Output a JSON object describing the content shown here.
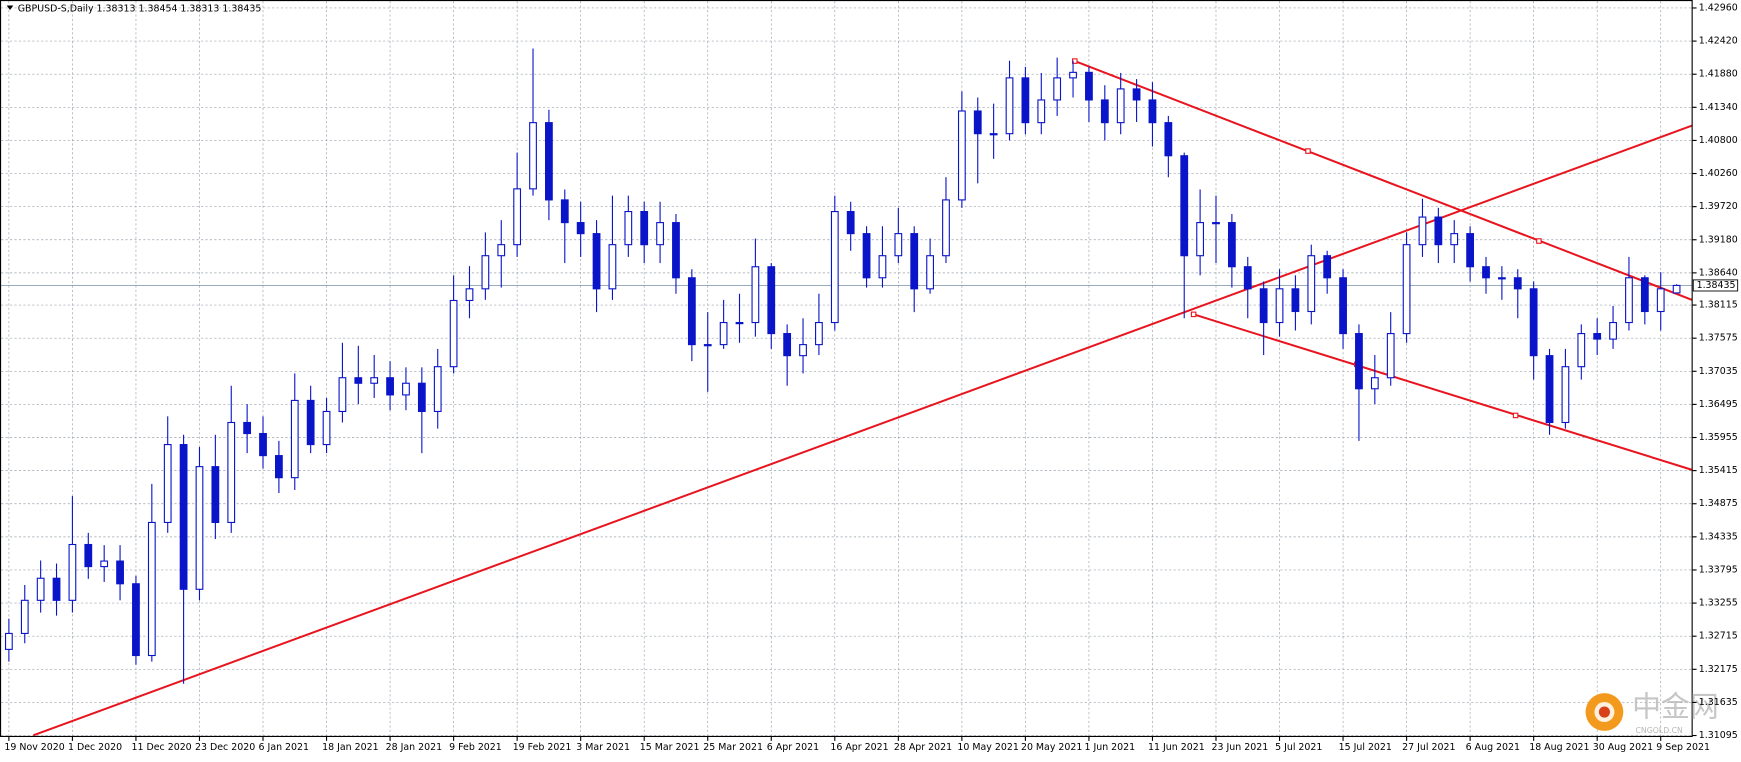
{
  "chart_data": {
    "type": "candlestick",
    "title": "GBPUSD-S,Daily  1.38313 1.38454 1.38313 1.38435",
    "categories": [
      "19 Nov 2020",
      null,
      null,
      null,
      "1 Dec 2020",
      null,
      null,
      null,
      "11 Dec 2020",
      null,
      null,
      null,
      "23 Dec 2020",
      null,
      null,
      null,
      "6 Jan 2021",
      null,
      null,
      null,
      "18 Jan 2021",
      null,
      null,
      null,
      "28 Jan 2021",
      null,
      null,
      null,
      "9 Feb 2021",
      null,
      null,
      null,
      "19 Feb 2021",
      null,
      null,
      null,
      "3 Mar 2021",
      null,
      null,
      null,
      "15 Mar 2021",
      null,
      null,
      null,
      "25 Mar 2021",
      null,
      null,
      null,
      "6 Apr 2021",
      null,
      null,
      null,
      "16 Apr 2021",
      null,
      null,
      null,
      "28 Apr 2021",
      null,
      null,
      null,
      "10 May 2021",
      null,
      null,
      null,
      "20 May 2021",
      null,
      null,
      null,
      "1 Jun 2021",
      null,
      null,
      null,
      "11 Jun 2021",
      null,
      null,
      null,
      "23 Jun 2021",
      null,
      null,
      null,
      "5 Jul 2021",
      null,
      null,
      null,
      "15 Jul 2021",
      null,
      null,
      null,
      "27 Jul 2021",
      null,
      null,
      null,
      "6 Aug 2021",
      null,
      null,
      null,
      "18 Aug 2021",
      null,
      null,
      null,
      "30 Aug 2021",
      null,
      null,
      null,
      "9 Sep 2021",
      null
    ],
    "open": [
      1.325,
      1.3276,
      1.333,
      1.3366,
      1.333,
      1.3421,
      1.3385,
      1.3394,
      1.3357,
      1.324,
      1.3457,
      1.3584,
      1.3348,
      1.3548,
      1.3457,
      1.362,
      1.3602,
      1.3566,
      1.353,
      1.3656,
      1.3584,
      1.3638,
      1.3693,
      1.3684,
      1.3693,
      1.3665,
      1.3684,
      1.3638,
      1.3711,
      1.3819,
      1.3838,
      1.3892,
      1.391,
      1.4001,
      1.4109,
      1.3983,
      1.3946,
      1.3928,
      1.3838,
      1.391,
      1.3964,
      1.391,
      1.3946,
      1.3856,
      1.3747,
      1.3747,
      1.3783,
      1.3783,
      1.3874,
      1.3765,
      1.3729,
      1.3747,
      1.3783,
      1.3964,
      1.3928,
      1.3856,
      1.3892,
      1.3928,
      1.3838,
      1.3892,
      1.3983,
      1.4128,
      1.4091,
      1.4091,
      1.4182,
      1.4109,
      1.4146,
      1.4182,
      1.4191,
      1.4146,
      1.4109,
      1.4164,
      1.4146,
      1.4109,
      1.4055,
      1.3892,
      1.3946,
      1.3946,
      1.3874,
      1.3838,
      1.3783,
      1.3838,
      1.3801,
      1.3892,
      1.3856,
      1.3765,
      1.3675,
      1.3693,
      1.3765,
      1.391,
      1.3955,
      1.391,
      1.3928,
      1.3874,
      1.3856,
      1.3856,
      1.3838,
      1.3729,
      1.362,
      1.3711,
      1.3765,
      1.3756,
      1.3783,
      1.3856,
      1.3801,
      1.38313
    ],
    "high": [
      1.33,
      1.3355,
      1.3395,
      1.339,
      1.35,
      1.344,
      1.342,
      1.342,
      1.337,
      1.352,
      1.363,
      1.36,
      1.358,
      1.36,
      1.368,
      1.365,
      1.363,
      1.359,
      1.37,
      1.368,
      1.366,
      1.375,
      1.3745,
      1.373,
      1.372,
      1.371,
      1.371,
      1.374,
      1.386,
      1.3875,
      1.393,
      1.395,
      1.406,
      1.423,
      1.413,
      1.4,
      1.398,
      1.395,
      1.399,
      1.399,
      1.398,
      1.398,
      1.396,
      1.387,
      1.38,
      1.382,
      1.383,
      1.392,
      1.388,
      1.378,
      1.379,
      1.383,
      1.399,
      1.398,
      1.394,
      1.394,
      1.397,
      1.394,
      1.392,
      1.402,
      1.416,
      1.415,
      1.414,
      1.421,
      1.42,
      1.419,
      1.4215,
      1.421,
      1.42,
      1.417,
      1.419,
      1.418,
      1.4175,
      1.412,
      1.406,
      1.4,
      1.399,
      1.396,
      1.389,
      1.385,
      1.387,
      1.386,
      1.391,
      1.39,
      1.387,
      1.378,
      1.373,
      1.38,
      1.393,
      1.3985,
      1.397,
      1.395,
      1.394,
      1.389,
      1.3875,
      1.387,
      1.385,
      1.374,
      1.374,
      1.378,
      1.379,
      1.381,
      1.389,
      1.386,
      1.3865,
      1.38454
    ],
    "low": [
      1.323,
      1.326,
      1.331,
      1.3305,
      1.331,
      1.3365,
      1.336,
      1.333,
      1.3225,
      1.323,
      1.344,
      1.3194,
      1.333,
      1.343,
      1.344,
      1.357,
      1.3545,
      1.3505,
      1.351,
      1.357,
      1.357,
      1.362,
      1.365,
      1.366,
      1.364,
      1.364,
      1.357,
      1.361,
      1.37,
      1.379,
      1.382,
      1.384,
      1.389,
      1.399,
      1.395,
      1.388,
      1.389,
      1.38,
      1.382,
      1.389,
      1.388,
      1.388,
      1.383,
      1.372,
      1.367,
      1.374,
      1.375,
      1.376,
      1.374,
      1.368,
      1.37,
      1.373,
      1.377,
      1.39,
      1.384,
      1.384,
      1.388,
      1.38,
      1.383,
      1.388,
      1.397,
      1.401,
      1.405,
      1.408,
      1.409,
      1.409,
      1.412,
      1.415,
      1.411,
      1.408,
      1.409,
      1.411,
      1.407,
      1.402,
      1.379,
      1.386,
      1.388,
      1.384,
      1.379,
      1.373,
      1.376,
      1.377,
      1.378,
      1.383,
      1.374,
      1.359,
      1.365,
      1.368,
      1.375,
      1.389,
      1.388,
      1.388,
      1.385,
      1.383,
      1.382,
      1.379,
      1.369,
      1.36,
      1.361,
      1.369,
      1.373,
      1.374,
      1.377,
      1.378,
      1.377,
      1.38313
    ],
    "close": [
      1.3276,
      1.333,
      1.3366,
      1.333,
      1.3421,
      1.3385,
      1.3394,
      1.3357,
      1.324,
      1.3457,
      1.3584,
      1.3348,
      1.3548,
      1.3457,
      1.362,
      1.3602,
      1.3566,
      1.353,
      1.3656,
      1.3584,
      1.3638,
      1.3693,
      1.3684,
      1.3693,
      1.3665,
      1.3684,
      1.3638,
      1.3711,
      1.3819,
      1.3838,
      1.3892,
      1.391,
      1.4001,
      1.4109,
      1.3983,
      1.3946,
      1.3928,
      1.3838,
      1.391,
      1.3964,
      1.391,
      1.3946,
      1.3856,
      1.3747,
      1.3747,
      1.3783,
      1.3783,
      1.3874,
      1.3765,
      1.3729,
      1.3747,
      1.3783,
      1.3964,
      1.3928,
      1.3856,
      1.3892,
      1.3928,
      1.3838,
      1.3892,
      1.3983,
      1.4128,
      1.4091,
      1.4091,
      1.4182,
      1.4109,
      1.4146,
      1.4182,
      1.4191,
      1.4146,
      1.4109,
      1.4164,
      1.4146,
      1.4109,
      1.4055,
      1.3892,
      1.3946,
      1.3946,
      1.3874,
      1.3838,
      1.3783,
      1.3838,
      1.3801,
      1.3892,
      1.3856,
      1.3765,
      1.3675,
      1.3693,
      1.3765,
      1.391,
      1.3955,
      1.391,
      1.3928,
      1.3874,
      1.3856,
      1.3856,
      1.3838,
      1.3729,
      1.362,
      1.3711,
      1.3765,
      1.3756,
      1.3783,
      1.3856,
      1.3801,
      1.3838,
      1.38435
    ],
    "color": "#0a14c8",
    "ylim": [
      1.3108,
      1.4309
    ],
    "yticks": [
      {
        "value": 1.4296,
        "label": "1.42960"
      },
      {
        "value": 1.4242,
        "label": "1.42420"
      },
      {
        "value": 1.4188,
        "label": "1.41880"
      },
      {
        "value": 1.4134,
        "label": "1.41340"
      },
      {
        "value": 1.408,
        "label": "1.40800"
      },
      {
        "value": 1.4026,
        "label": "1.40260"
      },
      {
        "value": 1.3972,
        "label": "1.39720"
      },
      {
        "value": 1.3918,
        "label": "1.39180"
      },
      {
        "value": 1.3864,
        "label": "1.38640"
      },
      {
        "value": 1.38115,
        "label": "1.38115"
      },
      {
        "value": 1.37575,
        "label": "1.37575"
      },
      {
        "value": 1.37035,
        "label": "1.37035"
      },
      {
        "value": 1.36495,
        "label": "1.36495"
      },
      {
        "value": 1.35955,
        "label": "1.35955"
      },
      {
        "value": 1.35415,
        "label": "1.35415"
      },
      {
        "value": 1.34875,
        "label": "1.34875"
      },
      {
        "value": 1.34335,
        "label": "1.34335"
      },
      {
        "value": 1.33795,
        "label": "1.33795"
      },
      {
        "value": 1.33255,
        "label": "1.33255"
      },
      {
        "value": 1.32715,
        "label": "1.32715"
      },
      {
        "value": 1.32175,
        "label": "1.32175"
      },
      {
        "value": 1.31635,
        "label": "1.31635"
      },
      {
        "value": 1.31095,
        "label": "1.31095"
      }
    ],
    "grid": true,
    "current_price": 1.38435,
    "watermark": "中金网",
    "watermark_sub": "CNGOLD.CN"
  }
}
